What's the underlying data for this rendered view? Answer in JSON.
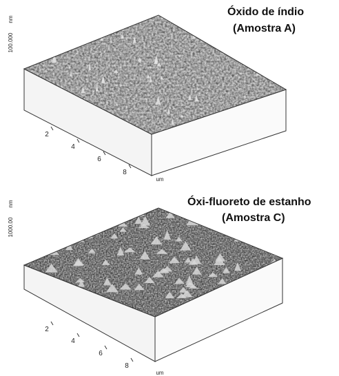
{
  "panels": [
    {
      "title": "Óxido de índio",
      "sample": "(Amostra A)",
      "z_label": "100.000",
      "z_unit": "nm",
      "x_ticks": [
        "2",
        "4",
        "6",
        "8"
      ],
      "x_unit": "um"
    },
    {
      "title": "Óxi-fluoreto de estanho",
      "sample": "(Amostra C)",
      "z_label": "1000.00",
      "z_unit": "nm",
      "x_ticks": [
        "2",
        "4",
        "6",
        "8"
      ],
      "x_unit": "um"
    }
  ]
}
